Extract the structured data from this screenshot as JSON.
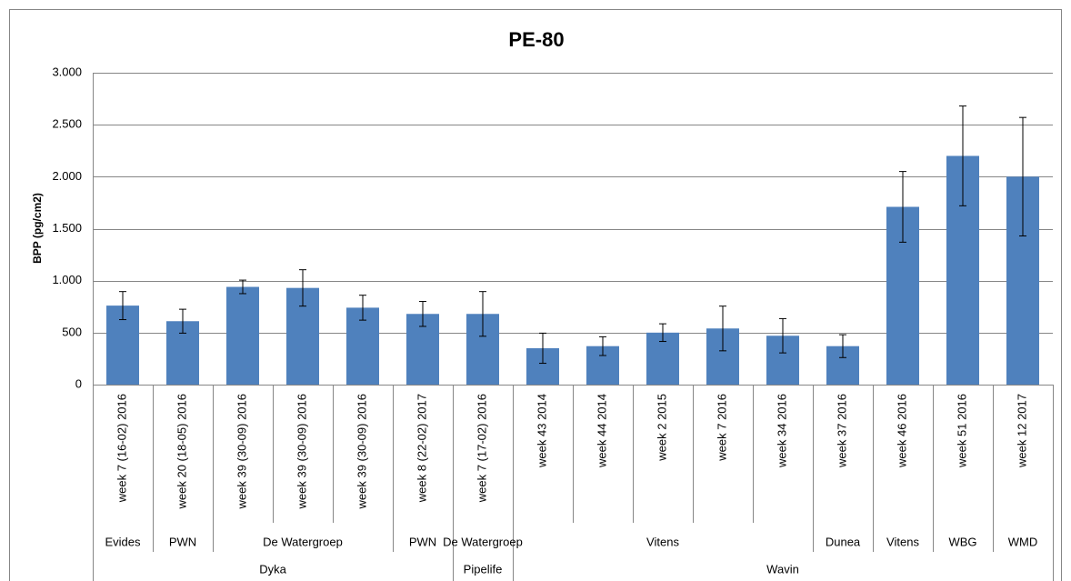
{
  "chart_data": {
    "type": "bar",
    "title": "PE-80",
    "y_label": "BPP (pg/cm2)",
    "categories": [
      "week 7 (16-02) 2016",
      "week 20 (18-05) 2016",
      "week 39 (30-09) 2016",
      "week 39 (30-09) 2016",
      "week 39 (30-09) 2016",
      "week 8 (22-02) 2017",
      "week 7 (17-02) 2016",
      "week 43 2014",
      "week 44 2014",
      "week 2 2015",
      "week 7 2016",
      "week 34 2016",
      "week 37 2016",
      "week 46 2016",
      "week 51 2016",
      "week 12 2017"
    ],
    "categories_level2": [
      "Evides",
      "PWN",
      "De Watergroep",
      null,
      null,
      "PWN",
      "De Watergroep",
      "Vitens",
      null,
      null,
      null,
      null,
      "Dunea",
      "Vitens",
      "WBG",
      "WMD"
    ],
    "categories_level3": [
      "Dyka",
      null,
      null,
      null,
      null,
      null,
      "Pipelife",
      "Wavin",
      null,
      null,
      null,
      null,
      null,
      null,
      null,
      null
    ],
    "values": [
      760,
      610,
      940,
      930,
      740,
      680,
      680,
      350,
      370,
      500,
      540,
      470,
      370,
      1710,
      2200,
      2000
    ],
    "errors": [
      135,
      115,
      65,
      175,
      120,
      120,
      215,
      145,
      90,
      85,
      215,
      165,
      110,
      340,
      480,
      570
    ],
    "color": "#4f81bd",
    "ylim": [
      0,
      3000
    ],
    "yticks": [
      0,
      500,
      {
        "value": 1000,
        "label": "1.000"
      },
      {
        "value": 1500,
        "label": "1.500"
      },
      {
        "value": 2000,
        "label": "2.000"
      },
      {
        "value": 2500,
        "label": "2.500"
      },
      {
        "value": 3000,
        "label": "3.000"
      }
    ],
    "grid": true
  }
}
